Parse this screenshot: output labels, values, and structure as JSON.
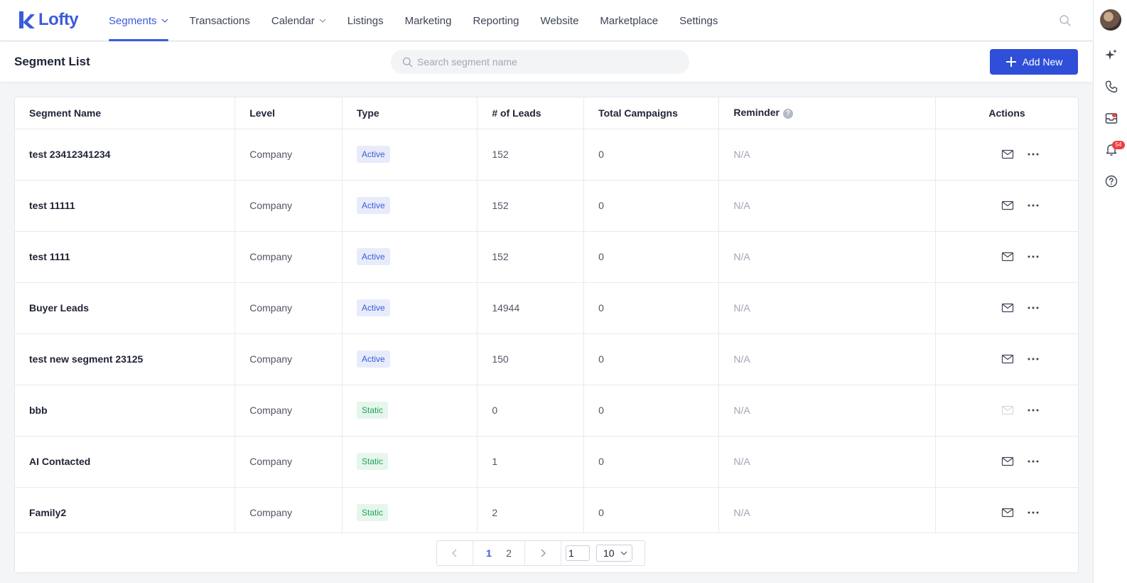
{
  "brand": {
    "name": "Lofty"
  },
  "nav": {
    "items": [
      {
        "label": "Segments",
        "dropdown": true,
        "active": true
      },
      {
        "label": "Transactions",
        "dropdown": false
      },
      {
        "label": "Calendar",
        "dropdown": true
      },
      {
        "label": "Listings",
        "dropdown": false
      },
      {
        "label": "Marketing",
        "dropdown": false
      },
      {
        "label": "Reporting",
        "dropdown": false
      },
      {
        "label": "Website",
        "dropdown": false
      },
      {
        "label": "Marketplace",
        "dropdown": false
      },
      {
        "label": "Settings",
        "dropdown": false
      }
    ]
  },
  "rail": {
    "notification_count": "54"
  },
  "page": {
    "title": "Segment List",
    "search_placeholder": "Search segment name",
    "add_button_label": "Add New"
  },
  "table": {
    "columns": [
      "Segment Name",
      "Level",
      "Type",
      "# of Leads",
      "Total Campaigns",
      "Reminder",
      "Actions"
    ],
    "rows": [
      {
        "name": "test 23412341234",
        "level": "Company",
        "type": "Active",
        "leads": "152",
        "campaigns": "0",
        "reminder": "N/A",
        "email_enabled": true
      },
      {
        "name": "test 11111",
        "level": "Company",
        "type": "Active",
        "leads": "152",
        "campaigns": "0",
        "reminder": "N/A",
        "email_enabled": true
      },
      {
        "name": "test 1111",
        "level": "Company",
        "type": "Active",
        "leads": "152",
        "campaigns": "0",
        "reminder": "N/A",
        "email_enabled": true
      },
      {
        "name": "Buyer Leads",
        "level": "Company",
        "type": "Active",
        "leads": "14944",
        "campaigns": "0",
        "reminder": "N/A",
        "email_enabled": true
      },
      {
        "name": "test new segment 23125",
        "level": "Company",
        "type": "Active",
        "leads": "150",
        "campaigns": "0",
        "reminder": "N/A",
        "email_enabled": true
      },
      {
        "name": "bbb",
        "level": "Company",
        "type": "Static",
        "leads": "0",
        "campaigns": "0",
        "reminder": "N/A",
        "email_enabled": false
      },
      {
        "name": "AI Contacted",
        "level": "Company",
        "type": "Static",
        "leads": "1",
        "campaigns": "0",
        "reminder": "N/A",
        "email_enabled": true
      },
      {
        "name": "Family2",
        "level": "Company",
        "type": "Static",
        "leads": "2",
        "campaigns": "0",
        "reminder": "N/A",
        "email_enabled": true
      }
    ]
  },
  "pagination": {
    "pages": [
      "1",
      "2"
    ],
    "current_page": "1",
    "jump_value": "1",
    "page_size": "10"
  },
  "colors": {
    "accent": "#3b5bdb",
    "button": "#2f4fd8",
    "active_tag_bg": "#e8ecfa",
    "static_tag_bg": "#e6f6ec",
    "static_tag_text": "#22a35a",
    "badge": "#f03e3e"
  },
  "icons": [
    "lofty-logo-icon",
    "chevron-down-icon",
    "search-icon",
    "sparkle-icon",
    "phone-icon",
    "inbox-icon",
    "bell-icon",
    "help-icon",
    "plus-icon",
    "mail-icon",
    "more-icon",
    "chevron-left-icon",
    "chevron-right-icon"
  ]
}
